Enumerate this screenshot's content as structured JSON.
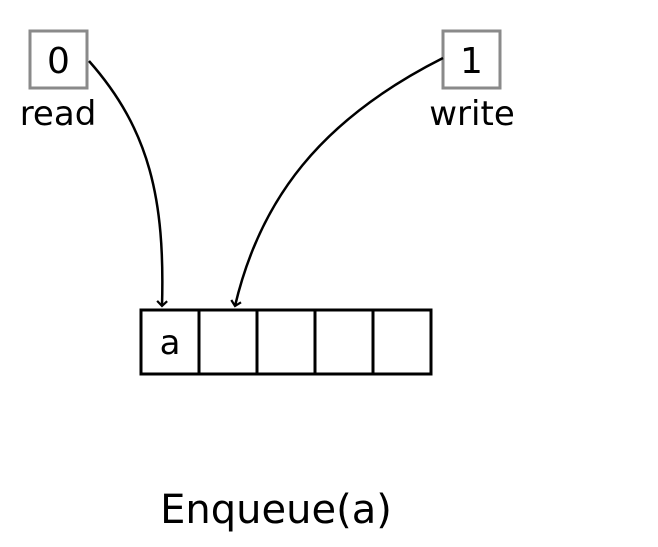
{
  "read_pointer": {
    "value": "0",
    "label": "read"
  },
  "write_pointer": {
    "value": "1",
    "label": "write"
  },
  "buffer": {
    "cells": [
      "a",
      "",
      "",
      "",
      ""
    ]
  },
  "caption": "Enqueue(a)"
}
